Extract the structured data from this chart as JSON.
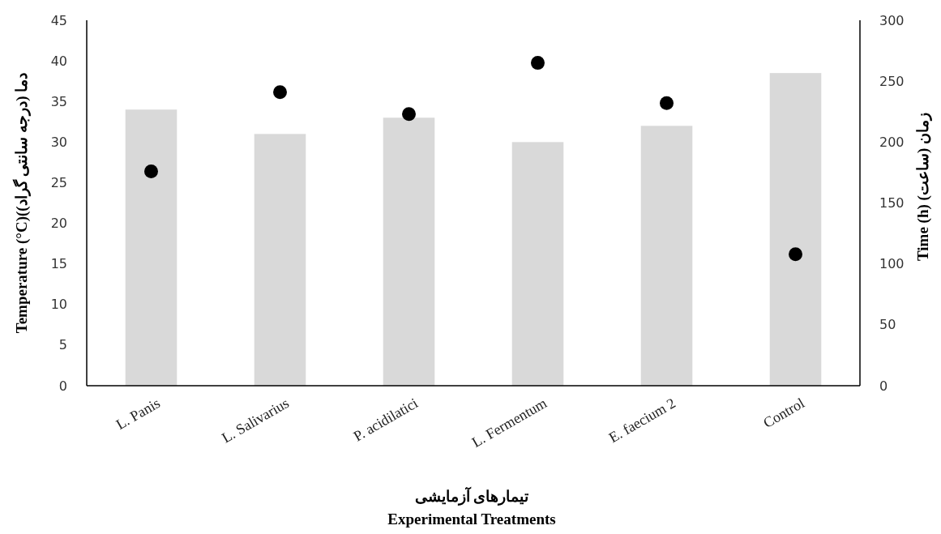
{
  "chart_data": {
    "type": "bar",
    "categories": [
      "L. Panis",
      "L. Salivarius",
      "P. acidilatici",
      "L. Fermentum",
      "E. faecium 2",
      "Control"
    ],
    "series": [
      {
        "color": "#d9d9d9",
        "values": [
          34,
          31,
          33,
          30,
          32,
          38.5
        ]
      },
      {
        "type": "scatter",
        "axis": "y2",
        "color": "#000000",
        "marker": "circle",
        "values": [
          176,
          241,
          223,
          265,
          232,
          108
        ]
      }
    ],
    "xlabel": "تیمارهای آزمایشی\nExperimental Treatments",
    "ylabel": "Temperature (°C)(دما (درجه سانتی گراد)",
    "y2label": "Time (h) زمان (ساعت)",
    "ylim": [
      0,
      45
    ],
    "yticks": [
      0,
      5,
      10,
      15,
      20,
      25,
      30,
      35,
      40,
      45
    ],
    "y2lim": [
      0,
      300
    ],
    "y2ticks": [
      0,
      50,
      100,
      150,
      200,
      250,
      300
    ]
  }
}
